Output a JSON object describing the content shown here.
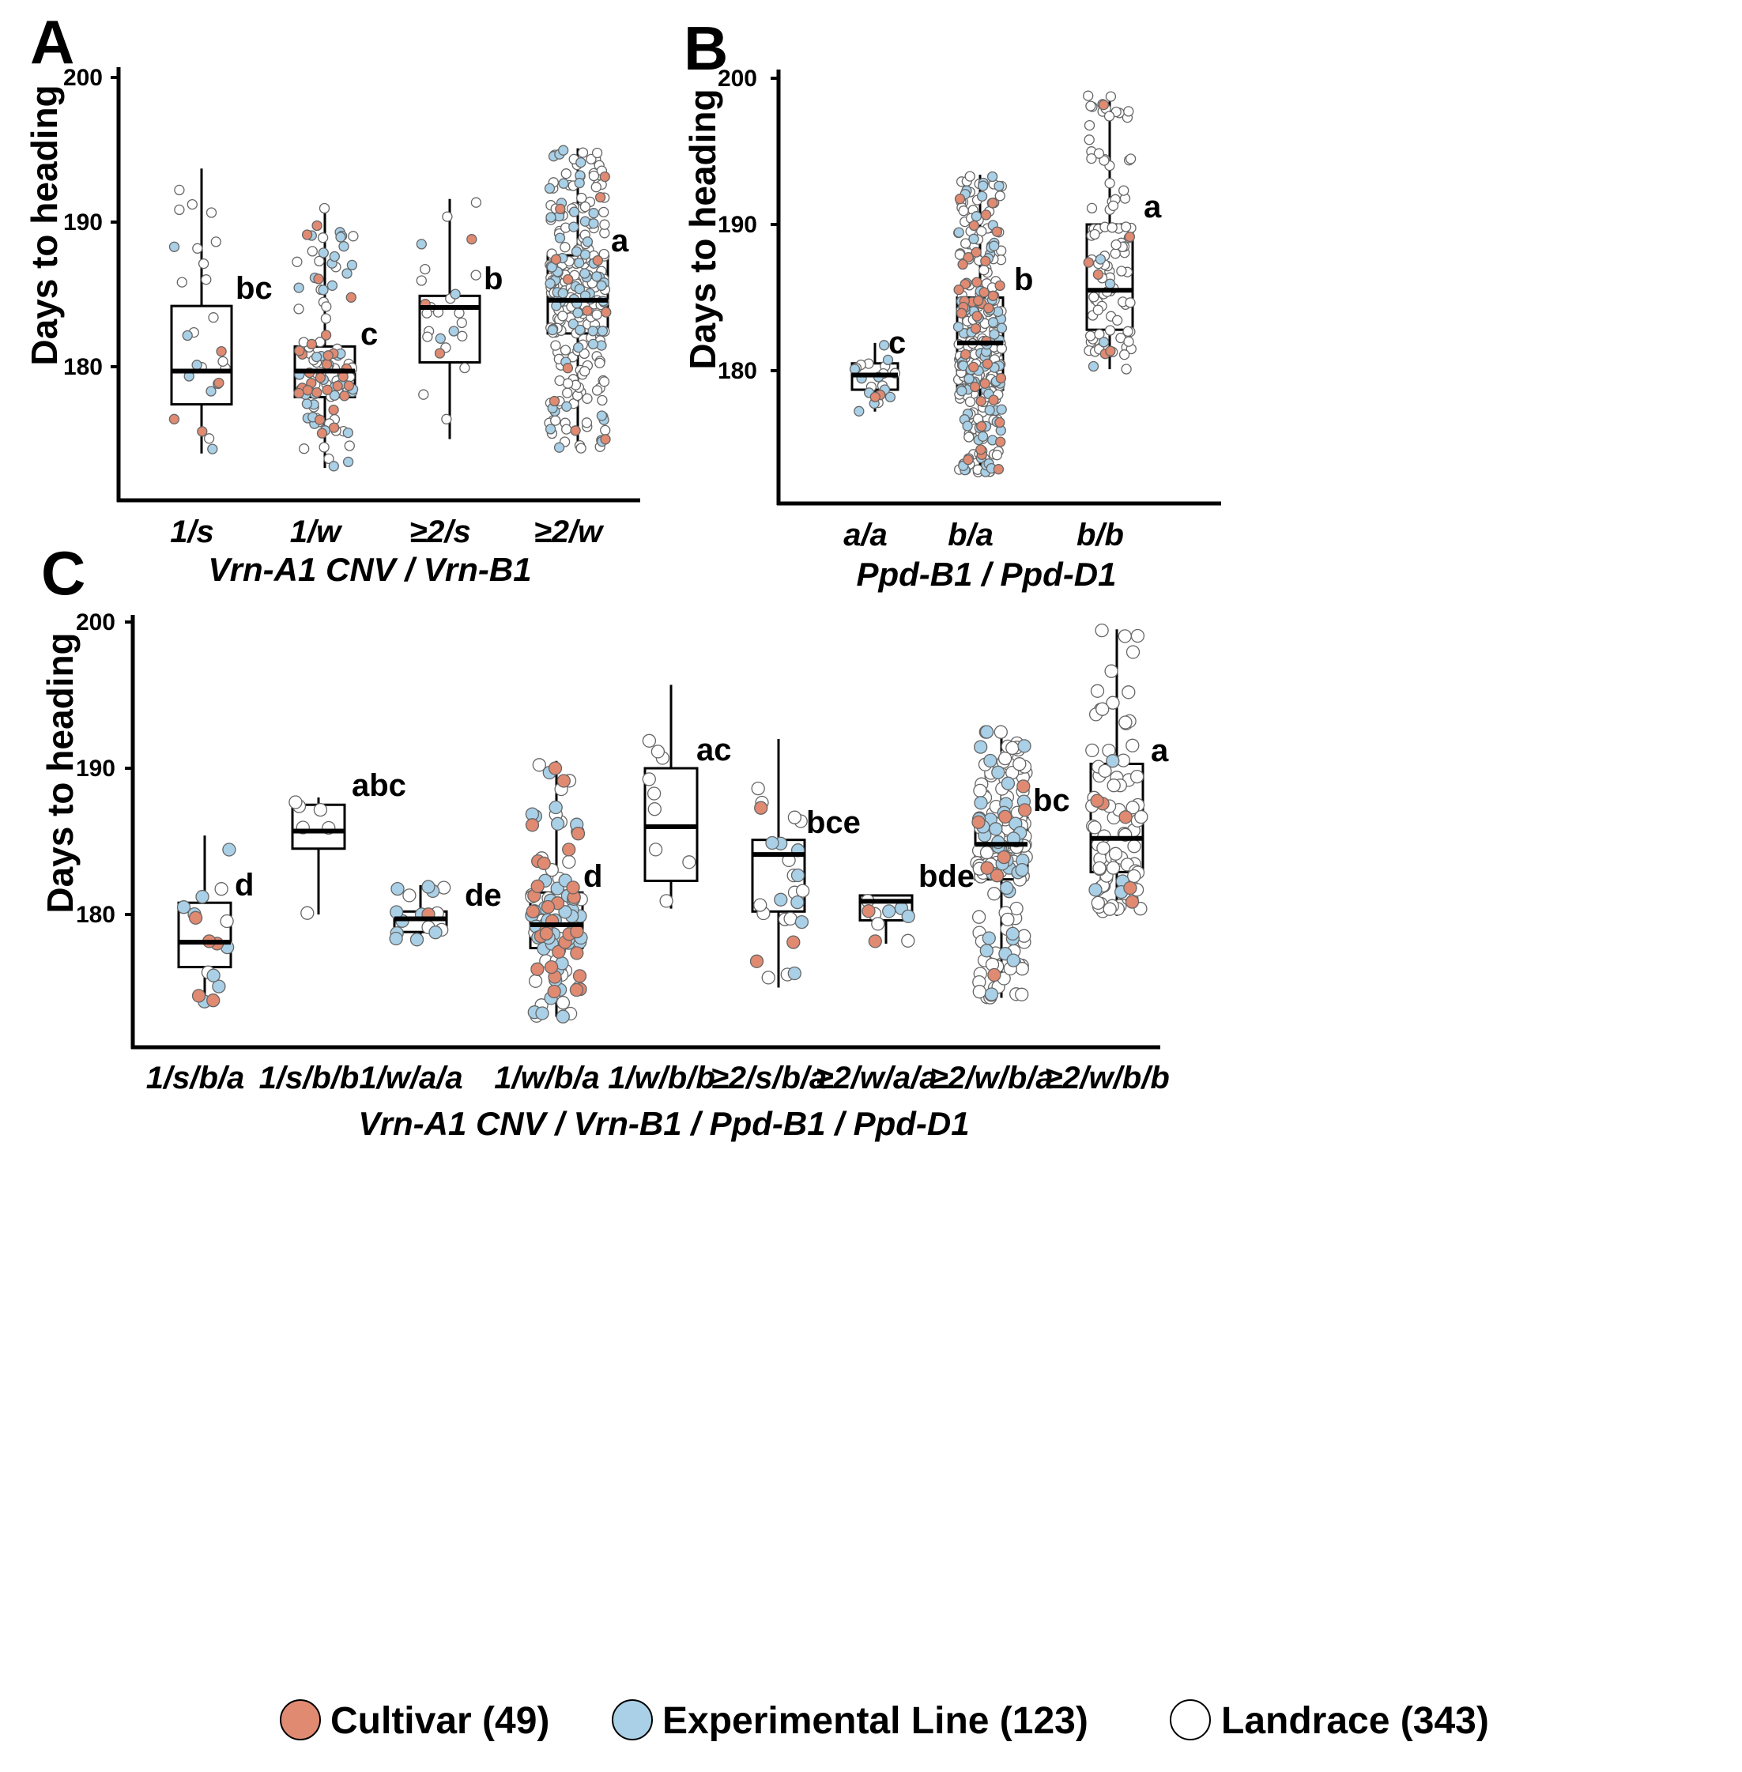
{
  "legend": [
    {
      "label": "Cultivar (49)",
      "color": "#e08a72"
    },
    {
      "label": "Experimental Line (123)",
      "color": "#a9d0e6"
    },
    {
      "label": "Landrace (343)",
      "color": "#ffffff"
    }
  ],
  "chart_data": [
    {
      "type": "box",
      "panel": "A",
      "ylabel": "Days to heading",
      "xlabel": "Vrn-A1 CNV / Vrn-B1",
      "ylim": [
        171,
        200
      ],
      "yticks": [
        180,
        190,
        200
      ],
      "categories": [
        "1/s",
        "1/w",
        "≥2/s",
        "≥2/w"
      ],
      "groups": [
        {
          "category": "1/s",
          "min": 174,
          "q1": 177.4,
          "median": 179.7,
          "q3": 184.2,
          "max": 193.7,
          "letter": "bc",
          "counts": {
            "cultivar": 4,
            "experimental": 6,
            "landrace": 16
          }
        },
        {
          "category": "1/w",
          "min": 173,
          "q1": 177.9,
          "median": 179.7,
          "q3": 181.4,
          "max": 191,
          "letter": "c",
          "counts": {
            "cultivar": 30,
            "experimental": 40,
            "landrace": 50
          }
        },
        {
          "category": "≥2/s",
          "min": 175,
          "q1": 180.3,
          "median": 184.1,
          "q3": 184.9,
          "max": 191.6,
          "letter": "b",
          "counts": {
            "cultivar": 3,
            "experimental": 4,
            "landrace": 18
          }
        },
        {
          "category": "≥2/w",
          "min": 174.3,
          "q1": 182.3,
          "median": 184.6,
          "q3": 187.7,
          "max": 195.1,
          "letter": "a",
          "counts": {
            "cultivar": 12,
            "experimental": 70,
            "landrace": 190
          }
        }
      ]
    },
    {
      "type": "box",
      "panel": "B",
      "ylabel": "Days to heading",
      "xlabel": "Ppd-B1 / Ppd-D1",
      "ylim": [
        171,
        200
      ],
      "yticks": [
        180,
        190,
        200
      ],
      "categories": [
        "a/a",
        "b/a",
        "b/b"
      ],
      "groups": [
        {
          "category": "a/a",
          "min": 177.2,
          "q1": 178.7,
          "median": 179.7,
          "q3": 180.5,
          "max": 181.9,
          "letter": "c",
          "counts": {
            "cultivar": 2,
            "experimental": 10,
            "landrace": 10
          }
        },
        {
          "category": "b/a",
          "min": 173,
          "q1": 178.7,
          "median": 181.9,
          "q3": 185,
          "max": 193.4,
          "letter": "b",
          "counts": {
            "cultivar": 40,
            "experimental": 80,
            "landrace": 190
          }
        },
        {
          "category": "b/b",
          "min": 180.1,
          "q1": 182.8,
          "median": 185.5,
          "q3": 190,
          "max": 199,
          "letter": "a",
          "counts": {
            "cultivar": 6,
            "experimental": 4,
            "landrace": 90
          }
        }
      ]
    },
    {
      "type": "box",
      "panel": "C",
      "ylabel": "Days to heading",
      "xlabel": "Vrn-A1 CNV / Vrn-B1 / Ppd-B1 / Ppd-D1",
      "ylim": [
        171,
        200
      ],
      "yticks": [
        180,
        190,
        200
      ],
      "categories": [
        "1/s/b/a",
        "1/s/b/b",
        "1/w/a/a",
        "1/w/b/a",
        "1/w/b/b",
        "≥2/s/b/a",
        "≥2/w/a/a",
        "≥2/w/b/a",
        "≥2/w/b/b"
      ],
      "groups": [
        {
          "category": "1/s/b/a",
          "min": 174,
          "q1": 176.4,
          "median": 178.1,
          "q3": 180.8,
          "max": 185.4,
          "letter": "d",
          "counts": {
            "cultivar": 5,
            "experimental": 8,
            "landrace": 3
          }
        },
        {
          "category": "1/s/b/b",
          "min": 180,
          "q1": 184.5,
          "median": 185.7,
          "q3": 187.5,
          "max": 188,
          "letter": "abc",
          "counts": {
            "cultivar": 0,
            "experimental": 0,
            "landrace": 6
          }
        },
        {
          "category": "1/w/a/a",
          "min": 178.2,
          "q1": 178.8,
          "median": 179.7,
          "q3": 180.2,
          "max": 182,
          "letter": "de",
          "counts": {
            "cultivar": 1,
            "experimental": 10,
            "landrace": 5
          }
        },
        {
          "category": "1/w/b/a",
          "min": 173,
          "q1": 177.7,
          "median": 179.3,
          "q3": 181.5,
          "max": 190.5,
          "letter": "d",
          "counts": {
            "cultivar": 30,
            "experimental": 40,
            "landrace": 35
          }
        },
        {
          "category": "1/w/b/b",
          "min": 180.4,
          "q1": 182.3,
          "median": 186,
          "q3": 190,
          "max": 195.7,
          "letter": "ac",
          "counts": {
            "cultivar": 0,
            "experimental": 0,
            "landrace": 9
          }
        },
        {
          "category": "≥2/s/b/a",
          "min": 175,
          "q1": 180.2,
          "median": 184.1,
          "q3": 185.1,
          "max": 192,
          "letter": "bce",
          "counts": {
            "cultivar": 3,
            "experimental": 8,
            "landrace": 14
          }
        },
        {
          "category": "≥2/w/a/a",
          "min": 178,
          "q1": 179.6,
          "median": 180.9,
          "q3": 181.3,
          "max": 181.3,
          "letter": "bde",
          "counts": {
            "cultivar": 2,
            "experimental": 3,
            "landrace": 4
          }
        },
        {
          "category": "≥2/w/b/a",
          "min": 174.3,
          "q1": 182.4,
          "median": 184.8,
          "q3": 186.6,
          "max": 192.5,
          "letter": "bc",
          "counts": {
            "cultivar": 8,
            "experimental": 40,
            "landrace": 130
          }
        },
        {
          "category": "≥2/w/b/b",
          "min": 179.9,
          "q1": 182.9,
          "median": 185.2,
          "q3": 190.3,
          "max": 199.5,
          "letter": "a",
          "counts": {
            "cultivar": 5,
            "experimental": 4,
            "landrace": 80
          }
        }
      ]
    }
  ]
}
